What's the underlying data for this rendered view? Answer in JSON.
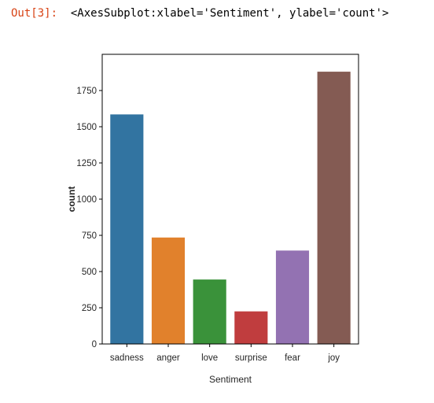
{
  "cell": {
    "prompt": "Out[3]:",
    "repr": "<AxesSubplot:xlabel='Sentiment', ylabel='count'>"
  },
  "chart_data": {
    "type": "bar",
    "categories": [
      "sadness",
      "anger",
      "love",
      "surprise",
      "fear",
      "joy"
    ],
    "values": [
      1585,
      735,
      445,
      225,
      645,
      1880
    ],
    "colors": [
      "#3274a1",
      "#e1812c",
      "#3a923a",
      "#c03d3e",
      "#9372b2",
      "#845b53"
    ],
    "xlabel": "Sentiment",
    "ylabel": "count",
    "ylim": [
      0,
      2000
    ],
    "yticks": [
      0,
      250,
      500,
      750,
      1000,
      1250,
      1500,
      1750
    ],
    "grid": false
  }
}
